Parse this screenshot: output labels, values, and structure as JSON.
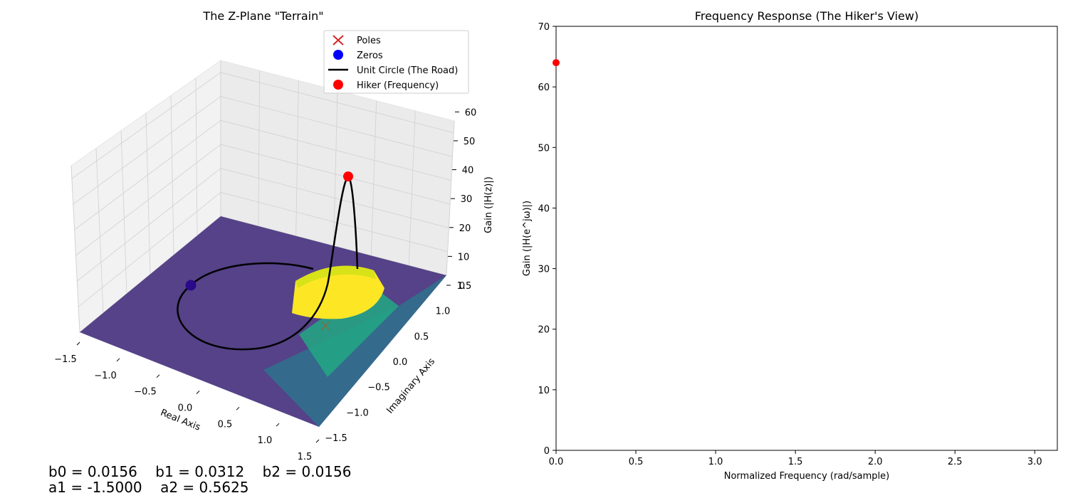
{
  "chart_data": [
    {
      "type": "surface3d",
      "title": "The Z-Plane \"Terrain\"",
      "xlabel": "Real Axis",
      "ylabel": "Imaginary Axis",
      "zlabel": "Gain (|H(z)|)",
      "xlim": [
        -1.5,
        1.5
      ],
      "ylim": [
        -1.5,
        1.5
      ],
      "zlim": [
        0,
        65
      ],
      "x_ticks": [
        "−1.5",
        "−1.0",
        "−0.5",
        "0.0",
        "0.5",
        "1.0",
        "1.5"
      ],
      "y_ticks": [
        "−1.5",
        "−1.0",
        "−0.5",
        "0.0",
        "0.5",
        "1.0",
        "1.5"
      ],
      "z_ticks": [
        "0",
        "10",
        "20",
        "30",
        "40",
        "50",
        "60"
      ],
      "grid": true,
      "colormap": "viridis",
      "poles": [
        {
          "re": 0.75,
          "im": 0.0
        }
      ],
      "zeros": [
        {
          "re": -1.0,
          "im": 0.0
        }
      ],
      "hiker": {
        "re": 1.0,
        "im": 0.0,
        "gain": 64
      },
      "legend_placement": "upper-right",
      "legend": [
        {
          "label": "Poles",
          "marker": "x",
          "color": "#d62728"
        },
        {
          "label": "Zeros",
          "marker": "circle",
          "color": "#0000ff"
        },
        {
          "label": "Unit Circle (The Road)",
          "marker": "line",
          "color": "#000000"
        },
        {
          "label": "Hiker (Frequency)",
          "marker": "circle",
          "color": "#ff0000"
        }
      ]
    },
    {
      "type": "line",
      "title": "Frequency Response (The Hiker's View)",
      "xlabel": "Normalized Frequency (rad/sample)",
      "ylabel": "Gain (|H(e^jω)|)",
      "xlim": [
        0,
        3.14159
      ],
      "ylim": [
        0,
        70
      ],
      "x_ticks": [
        "0.0",
        "0.5",
        "1.0",
        "1.5",
        "2.0",
        "2.5",
        "3.0"
      ],
      "y_ticks": [
        "0",
        "10",
        "20",
        "30",
        "40",
        "50",
        "60",
        "70"
      ],
      "grid": false,
      "series": [
        {
          "x": [
            0.0
          ],
          "y": [
            64
          ],
          "color": "#ff0000",
          "marker": "circle"
        }
      ]
    }
  ],
  "coefficients": {
    "line1": "b0 = 0.0156    b1 = 0.0312    b2 = 0.0156",
    "line2": "a1 = -1.5000    a2 = 0.5625"
  }
}
